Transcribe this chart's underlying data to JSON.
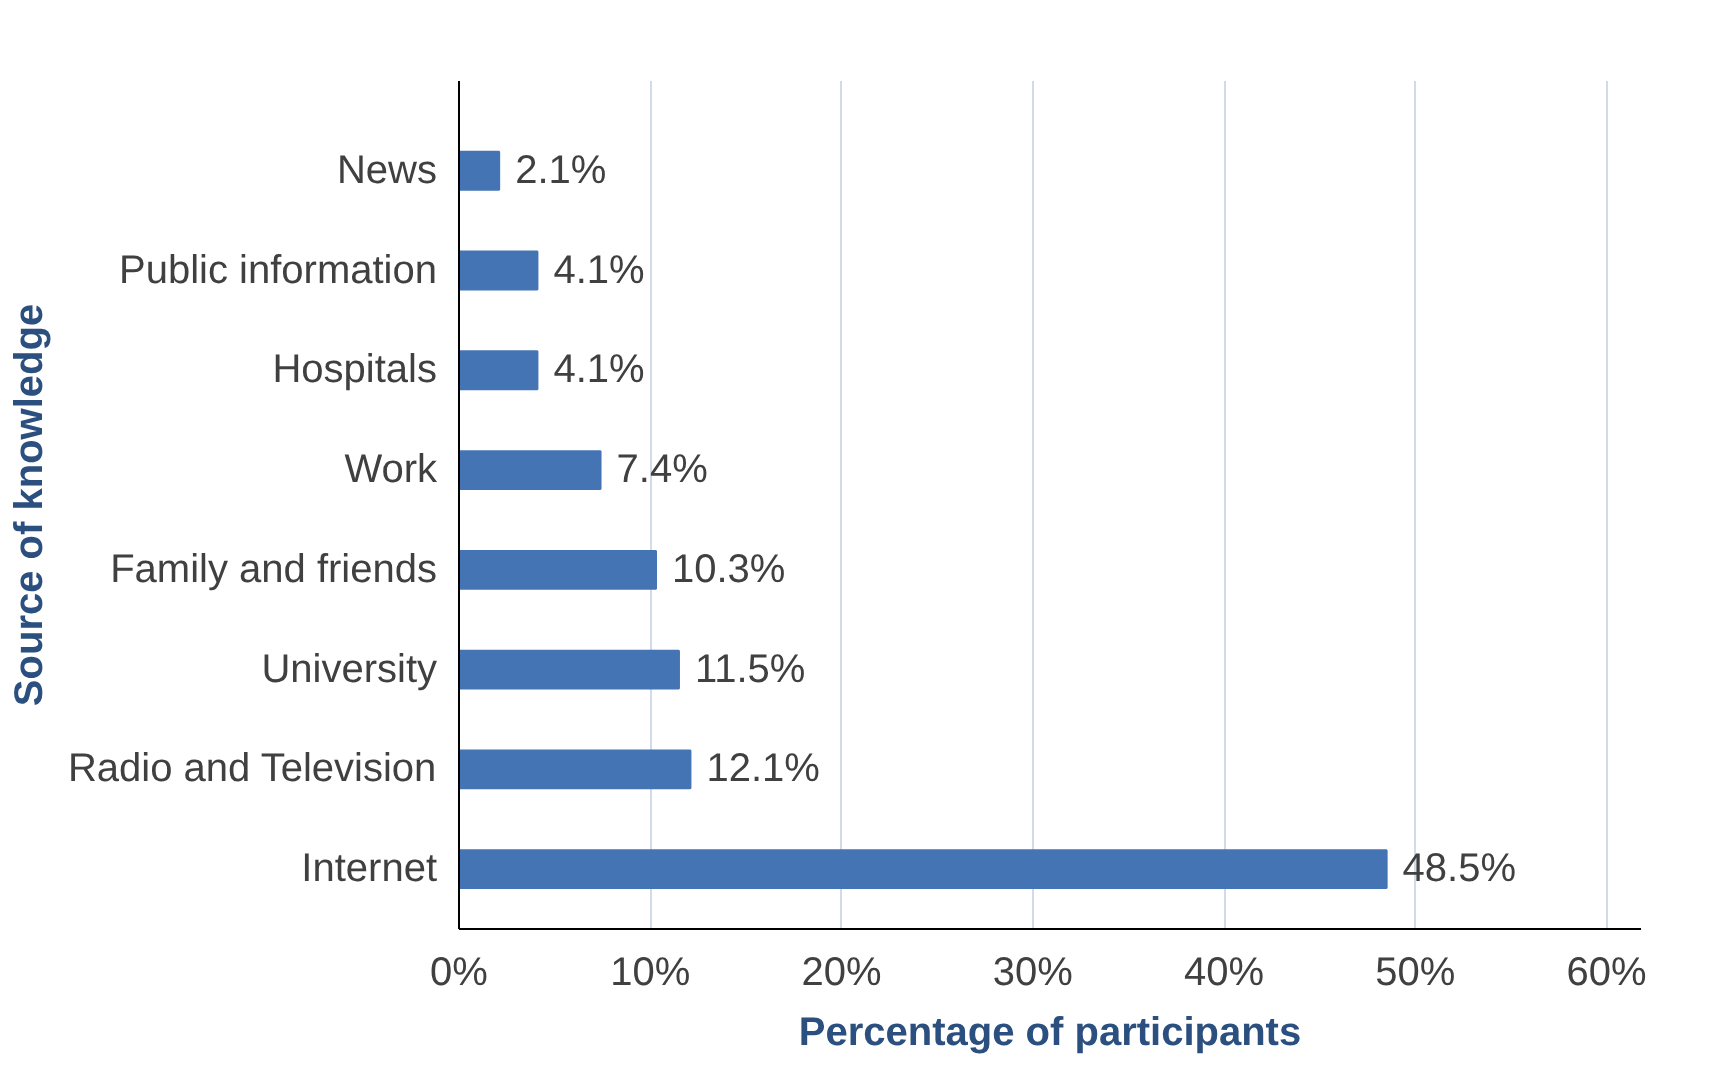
{
  "chart_data": {
    "type": "bar",
    "orientation": "horizontal",
    "xlabel": "Percentage of participants",
    "ylabel": "Source of knowledge",
    "categories": [
      "News",
      "Public information",
      "Hospitals",
      "Work",
      "Family and friends",
      "University",
      "Radio and Television",
      "Internet"
    ],
    "values": [
      2.1,
      4.1,
      4.1,
      7.4,
      10.3,
      11.5,
      12.1,
      48.5
    ],
    "value_labels": [
      "2.1%",
      "4.1%",
      "4.1%",
      "7.4%",
      "10.3%",
      "11.5%",
      "12.1%",
      "48.5%"
    ],
    "color": "#4474b4",
    "xlim": [
      0,
      60
    ],
    "xticks": [
      {
        "value": 0,
        "label": "0%"
      },
      {
        "value": 10,
        "label": "10%"
      },
      {
        "value": 20,
        "label": "20%"
      },
      {
        "value": 30,
        "label": "30%"
      },
      {
        "value": 40,
        "label": "40%"
      },
      {
        "value": 50,
        "label": "50%"
      },
      {
        "value": 60,
        "label": "60%"
      }
    ],
    "grid": "x"
  }
}
